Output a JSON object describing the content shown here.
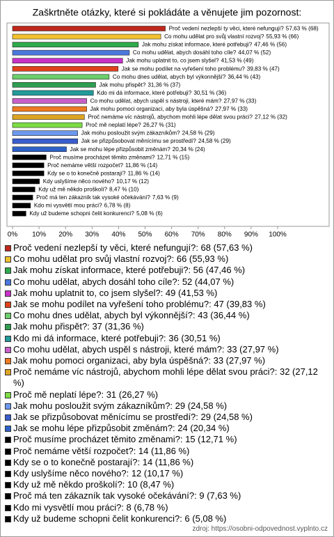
{
  "chart_data": {
    "type": "bar",
    "orientation": "horizontal",
    "title": "Zaškrtněte otázky, které si pokládáte a věnujete jim pozornost:",
    "categories": [
      "Proč vedení nezlepší ty věci, které nefungují?",
      "Co mohu udělat pro svůj vlastní rozvoj?",
      "Jak mohu získat informace, které potřebuji?",
      "Co mohu udělat, abych dosáhl toho cíle?",
      "Jak mohu uplatnit to, co jsem slyšel?",
      "Jak se mohu podílet na vyřešení toho problému?",
      "Co mohu dnes udělat, abych byl výkonnější?",
      "Jak mohu přispět?",
      "Kdo mi dá informace, které potřebuji?",
      "Co mohu udělat, abych uspěl s nástroji, které mám?",
      "Jak mohu pomoci organizaci, aby byla úspěšná?",
      "Proč nemáme víc nástrojů, abychom mohli lépe dělat svou práci?",
      "Proč mě neplatí lépe?",
      "Jak mohu posloužit svým zákazníkům?",
      "Jak se přizpůsobovat měnícímu se prostředí?",
      "Jak se mohu lépe přizpůsobit změnám?",
      "Proč musíme procházet těmito změnami?",
      "Proč nemáme větší rozpočet?",
      "Kdy se o to konečně postarají?",
      "Kdy uslyšíme něco nového?",
      "Kdy už mě někdo proškolí?",
      "Proč má ten zákazník tak vysoké očekávání?",
      "Kdo mi vysvětlí mou práci?",
      "Kdy už budeme schopni čelit konkurenci?"
    ],
    "values": [
      57.63,
      55.93,
      47.46,
      44.07,
      41.53,
      39.83,
      36.44,
      31.36,
      30.51,
      27.97,
      27.97,
      27.12,
      26.27,
      24.58,
      24.58,
      20.34,
      12.71,
      11.86,
      11.86,
      10.17,
      8.47,
      7.63,
      6.78,
      5.08
    ],
    "value_labels": [
      "57,63 % (68)",
      "55,93 % (66)",
      "47,46 % (56)",
      "44,07 % (52)",
      "41,53 % (49)",
      "39,83 % (47)",
      "36,44 % (43)",
      "31,36 % (37)",
      "30,51 % (36)",
      "27,97 % (33)",
      "27,97 % (33)",
      "27,12 % (32)",
      "26,27 % (31)",
      "24,58 % (29)",
      "24,58 % (29)",
      "20,34 % (24)",
      "12,71 % (15)",
      "11,86 % (14)",
      "11,86 % (14)",
      "10,17 % (12)",
      "8,47 % (10)",
      "7,63 % (9)",
      "6,78 % (8)",
      "5,08 % (6)"
    ],
    "legend_labels": [
      "Proč vedení nezlepší ty věci, které nefungují?: 68 (57,63 %)",
      "Co mohu udělat pro svůj vlastní rozvoj?: 66 (55,93 %)",
      "Jak mohu získat informace, které potřebuji?: 56 (47,46 %)",
      "Co mohu udělat, abych dosáhl toho cíle?: 52 (44,07 %)",
      "Jak mohu uplatnit to, co jsem slyšel?: 49 (41,53 %)",
      "Jak se mohu podílet na vyřešení toho problému?: 47 (39,83 %)",
      "Co mohu dnes udělat, abych byl výkonnější?: 43 (36,44 %)",
      "Jak mohu přispět?: 37 (31,36 %)",
      "Kdo mi dá informace, které potřebuji?: 36 (30,51 %)",
      "Co mohu udělat, abych uspěl s nástroji, které mám?: 33 (27,97 %)",
      "Jak mohu pomoci organizaci, aby byla úspěšná?: 33 (27,97 %)",
      "Proč nemáme víc nástrojů, abychom mohli lépe dělat svou práci?: 32 (27,12 %)",
      "Proč mě neplatí lépe?: 31 (26,27 %)",
      "Jak mohu posloužit svým zákazníkům?: 29 (24,58 %)",
      "Jak se přizpůsobovat měnícímu se prostředí?: 29 (24,58 %)",
      "Jak se mohu lépe přizpůsobit změnám?: 24 (20,34 %)",
      "Proč musíme procházet těmito změnami?: 15 (12,71 %)",
      "Proč nemáme větší rozpočet?: 14 (11,86 %)",
      "Kdy se o to konečně postarají?: 14 (11,86 %)",
      "Kdy uslyšíme něco nového?: 12 (10,17 %)",
      "Kdy už mě někdo proškolí?: 10 (8,47 %)",
      "Proč má ten zákazník tak vysoké očekávání?: 9 (7,63 %)",
      "Kdo mi vysvětlí mou práci?: 8 (6,78 %)",
      "Kdy už budeme schopni čelit konkurenci?: 6 (5,08 %)"
    ],
    "colors": [
      "#c0281c",
      "#f2c12e",
      "#2eaa4a",
      "#4a78dd",
      "#c832c8",
      "#e0421c",
      "#6cce6c",
      "#2e9e50",
      "#229a9a",
      "#c860c8",
      "#ee7a22",
      "#dca422",
      "#7cdc44",
      "#6c98ee",
      "#3a5ccc",
      "#2e62c8",
      "#000000",
      "#000000",
      "#000000",
      "#000000",
      "#000000",
      "#000000",
      "#000000",
      "#000000"
    ],
    "xlim": [
      0,
      100
    ],
    "xticks": [
      {
        "value": 0,
        "label": "0%"
      },
      {
        "value": 10,
        "label": "10%"
      },
      {
        "value": 20,
        "label": "20%"
      },
      {
        "value": 30,
        "label": "30%"
      },
      {
        "value": 40,
        "label": "40%"
      },
      {
        "value": 50,
        "label": "50%"
      },
      {
        "value": 60,
        "label": "60%"
      },
      {
        "value": 70,
        "label": "70%"
      },
      {
        "value": 80,
        "label": "80%"
      },
      {
        "value": 90,
        "label": "90%"
      },
      {
        "value": 100,
        "label": "100%"
      }
    ],
    "grid": false,
    "source": "zdroj: https://osobni-odpovednost.vyplnto.cz"
  }
}
